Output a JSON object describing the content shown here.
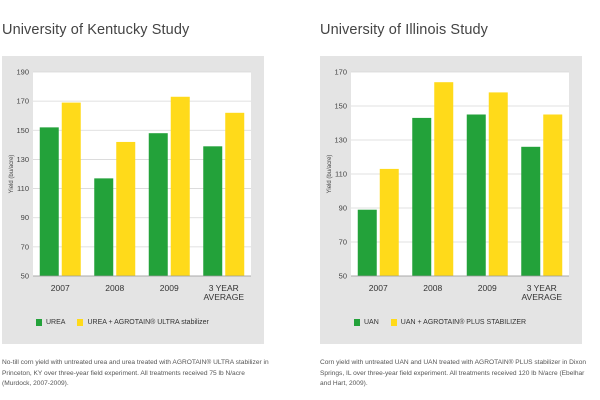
{
  "colors": {
    "green": "#23a23a",
    "yellow": "#ffda1a",
    "panel_bg": "#e4e4e4",
    "plot_bg": "#ffffff",
    "grid": "#d7d7d7"
  },
  "panels": [
    {
      "title": "University of Kentucky Study",
      "caption": "No-till corn yield with untreated urea and urea treated with AGROTAIN® ULTRA stabilizer in Princeton, KY over three-year field experiment. All treatments received 75 lb N/acre (Murdock, 2007-2009).",
      "legend": [
        "UREA",
        "UREA + AGROTAIN® ULTRA stabilizer"
      ]
    },
    {
      "title": "University of Illinois Study",
      "caption": "Corn yield with untreated UAN and UAN treated with AGROTAIN® PLUS stabilizer in Dixon Springs, IL over three-year field experiment. All treatments received 120 lb N/acre (Ebelhar and Hart, 2009).",
      "legend": [
        "UAN",
        "UAN + AGROTAIN® PLUS STABILIZER"
      ]
    }
  ],
  "chart_data": [
    {
      "type": "bar",
      "title": "University of Kentucky Study",
      "ylabel": "Yield (bu/acre)",
      "xlabel": "",
      "categories": [
        "2007",
        "2008",
        "2009",
        "3 YEAR AVERAGE"
      ],
      "series": [
        {
          "name": "UREA",
          "values": [
            152,
            117,
            148,
            139
          ]
        },
        {
          "name": "UREA + AGROTAIN® ULTRA stabilizer",
          "values": [
            169,
            142,
            173,
            162
          ]
        }
      ],
      "yticks": [
        50,
        70,
        90,
        110,
        130,
        150,
        170,
        190
      ],
      "ylim": [
        50,
        190
      ],
      "grid": true,
      "legend_position": "bottom"
    },
    {
      "type": "bar",
      "title": "University of Illinois Study",
      "ylabel": "Yield (bu/acre)",
      "xlabel": "",
      "categories": [
        "2007",
        "2008",
        "2009",
        "3 YEAR AVERAGE"
      ],
      "series": [
        {
          "name": "UAN",
          "values": [
            89,
            143,
            145,
            126
          ]
        },
        {
          "name": "UAN + AGROTAIN® PLUS STABILIZER",
          "values": [
            113,
            164,
            158,
            145
          ]
        }
      ],
      "yticks": [
        50,
        70,
        90,
        110,
        130,
        150,
        170
      ],
      "ylim": [
        50,
        170
      ],
      "grid": true,
      "legend_position": "bottom"
    }
  ]
}
